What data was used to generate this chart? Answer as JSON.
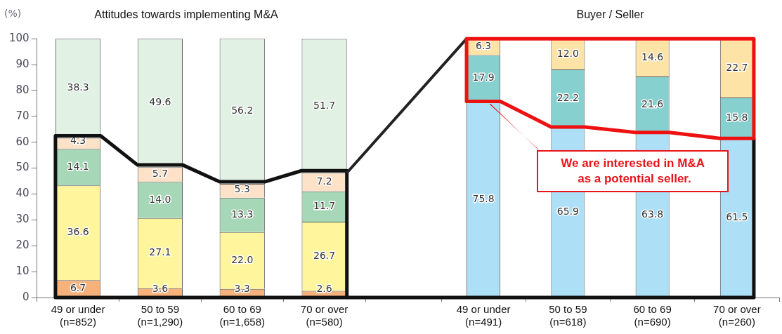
{
  "chart_data": [
    {
      "type": "bar",
      "title": "Attitudes towards implementing M&A",
      "ylabel": "(%)",
      "categories": [
        "49 or under\n(n=852)",
        "50 to 59\n(n=1,290)",
        "60 to 69\n(n=1,658)",
        "70 or over\n(n=580)"
      ],
      "stacked": true,
      "legend": false,
      "grid": false,
      "ylim": [
        0,
        100
      ],
      "yticks": [
        0,
        10,
        20,
        30,
        40,
        50,
        60,
        70,
        80,
        90,
        100
      ],
      "series": [
        {
          "color": "#f6b27a",
          "values": [
            6.7,
            3.6,
            3.3,
            2.6
          ],
          "value_labels": [
            "6.7",
            "3.6",
            "3.3",
            "2.6"
          ]
        },
        {
          "color": "#fff59c",
          "values": [
            36.6,
            27.1,
            22.0,
            26.7
          ],
          "value_labels": [
            "36.6",
            "27.1",
            "22.0",
            "26.7"
          ]
        },
        {
          "color": "#a6d8b7",
          "values": [
            14.1,
            14.0,
            13.3,
            11.7
          ],
          "value_labels": [
            "14.1",
            "14.0",
            "13.3",
            "11.7"
          ]
        },
        {
          "color": "#fde2c8",
          "values": [
            4.3,
            5.7,
            5.3,
            7.2
          ],
          "value_labels": [
            "4.3",
            "5.7",
            "5.3",
            "7.2"
          ]
        },
        {
          "color": "#e1f1e4",
          "values": [
            38.3,
            49.6,
            56.2,
            51.7
          ],
          "value_labels": [
            "38.3",
            "49.6",
            "56.2",
            "51.7"
          ]
        }
      ]
    },
    {
      "type": "bar",
      "title": "Buyer / Seller",
      "categories": [
        "49 or under\n(n=491)",
        "50 to 59\n(n=618)",
        "60 to 69\n(n=690)",
        "70 or over\n(n=260)"
      ],
      "stacked": true,
      "legend": false,
      "grid": false,
      "ylim": [
        0,
        100
      ],
      "tick_labels": "x",
      "annotations": [
        "We are interested in M&A\n as a potential seller."
      ],
      "series": [
        {
          "color": "#ade0f7",
          "values": [
            75.8,
            65.9,
            63.8,
            61.5
          ],
          "value_labels": [
            "75.8",
            "65.9",
            "63.8",
            "61.5"
          ]
        },
        {
          "color": "#86d1d0",
          "values": [
            17.9,
            22.2,
            21.6,
            15.8
          ],
          "value_labels": [
            "17.9",
            "22.2",
            "21.6",
            "15.8"
          ]
        },
        {
          "color": "#fde3a6",
          "values": [
            6.3,
            12.0,
            14.6,
            22.7
          ],
          "value_labels": [
            "6.3",
            "12.0",
            "14.6",
            "22.7"
          ]
        }
      ]
    }
  ]
}
